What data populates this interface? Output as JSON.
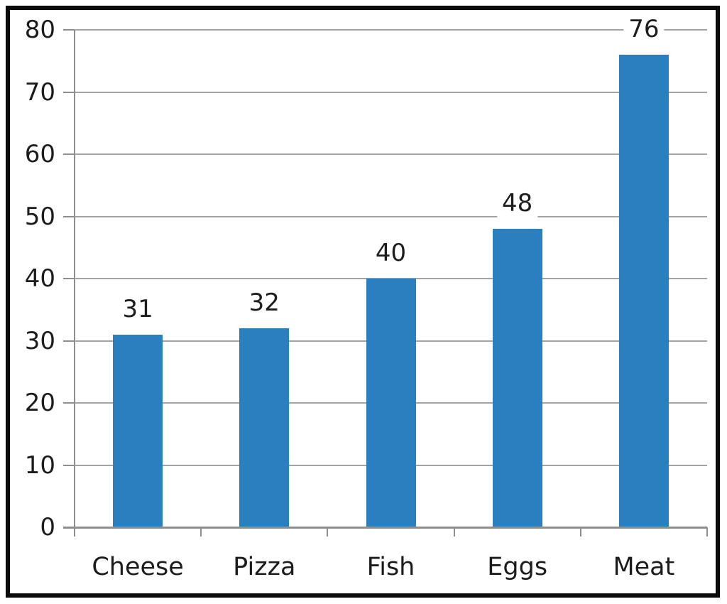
{
  "chart_data": {
    "type": "bar",
    "title": "",
    "xlabel": "",
    "ylabel": "",
    "categories": [
      "Cheese",
      "Pizza",
      "Fish",
      "Eggs",
      "Meat"
    ],
    "values": [
      31,
      32,
      40,
      48,
      76
    ],
    "data_labels": [
      "31",
      "32",
      "40",
      "48",
      "76"
    ],
    "yticks": [
      "0",
      "10",
      "20",
      "30",
      "40",
      "50",
      "60",
      "70",
      "80"
    ],
    "ytick_values": [
      0,
      10,
      20,
      30,
      40,
      50,
      60,
      70,
      80
    ],
    "ylim": [
      0,
      80
    ],
    "grid": "horizontal",
    "legend": "none",
    "colors": {
      "bar": "#2a7fbe",
      "gridline": "#a3a3a3",
      "axis": "#8e8e8e",
      "text": "#1c1c1c",
      "frame": "#0a0a0a",
      "background": "#ffffff"
    }
  }
}
